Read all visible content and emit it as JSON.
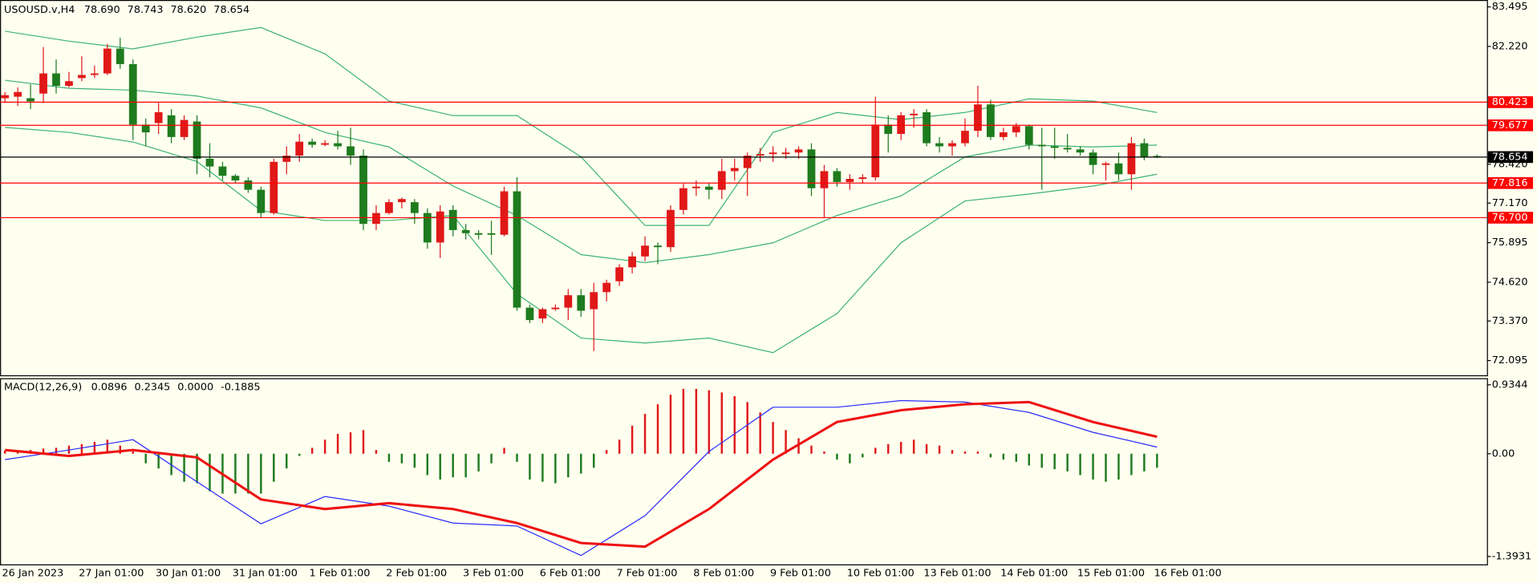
{
  "chart_data": [
    {
      "type": "candlestick",
      "title": "USOUSD.v,H4",
      "header_values": [
        "78.690",
        "78.743",
        "78.620",
        "78.654"
      ],
      "open": [
        80.55,
        80.6,
        80.55,
        80.7,
        81.35,
        80.95,
        81.2,
        81.3,
        81.35,
        82.15,
        81.65,
        79.7,
        79.75,
        80.0,
        79.3,
        79.8,
        78.6,
        78.35,
        78.05,
        77.9,
        77.6,
        76.85,
        78.5,
        78.7,
        79.15,
        79.05,
        79.1,
        79.0,
        78.7,
        76.5,
        76.85,
        77.2,
        77.2,
        76.85,
        75.9,
        76.95,
        76.3,
        76.2,
        76.2,
        76.15,
        77.55,
        73.8,
        73.45,
        73.75,
        73.8,
        74.2,
        73.75,
        74.3,
        74.65,
        75.1,
        75.45,
        75.8,
        75.75,
        76.95,
        77.65,
        77.7,
        77.6,
        78.2,
        78.3,
        78.7,
        78.75,
        78.75,
        78.8,
        78.9,
        77.65,
        78.2,
        77.85,
        77.95,
        78.0,
        79.7,
        79.4,
        80.0,
        80.1,
        79.1,
        79.0,
        79.1,
        79.5,
        80.35,
        79.3,
        79.45,
        79.65,
        79.05,
        79.0,
        78.95,
        78.9,
        78.8,
        78.4,
        78.45,
        78.1,
        79.1,
        78.69
      ],
      "high": [
        80.75,
        80.9,
        81.0,
        82.2,
        81.8,
        81.4,
        81.9,
        81.6,
        82.3,
        82.5,
        81.8,
        79.9,
        80.4,
        80.2,
        80.0,
        80.0,
        79.1,
        78.5,
        78.1,
        78.0,
        77.7,
        78.6,
        79.0,
        79.4,
        79.25,
        79.2,
        79.5,
        79.6,
        78.9,
        77.1,
        77.3,
        77.35,
        77.3,
        77.0,
        77.1,
        77.1,
        76.5,
        76.3,
        76.6,
        77.7,
        78.0,
        73.9,
        73.8,
        73.9,
        74.4,
        74.4,
        74.6,
        74.7,
        75.2,
        75.6,
        76.1,
        75.9,
        77.1,
        77.8,
        77.9,
        77.8,
        78.6,
        78.6,
        78.8,
        78.95,
        79.0,
        78.95,
        79.0,
        79.1,
        78.4,
        78.3,
        78.1,
        78.1,
        80.6,
        80.0,
        80.1,
        80.2,
        80.2,
        79.3,
        79.2,
        79.9,
        80.95,
        80.5,
        79.6,
        79.75,
        79.7,
        79.6,
        79.6,
        79.4,
        79.0,
        78.9,
        78.5,
        78.8,
        79.3,
        79.25,
        78.743
      ],
      "low": [
        80.4,
        80.3,
        80.2,
        80.4,
        80.7,
        80.9,
        81.1,
        81.2,
        81.3,
        81.5,
        79.2,
        79.0,
        79.4,
        79.1,
        79.2,
        78.1,
        78.0,
        77.9,
        77.8,
        77.5,
        76.7,
        76.8,
        78.1,
        78.5,
        78.95,
        79.0,
        78.9,
        78.4,
        76.3,
        76.3,
        76.8,
        77.0,
        76.5,
        75.7,
        75.4,
        76.1,
        76.0,
        76.0,
        75.5,
        76.1,
        73.7,
        73.3,
        73.3,
        73.7,
        73.4,
        73.5,
        72.4,
        74.0,
        74.5,
        74.9,
        75.3,
        75.2,
        75.6,
        76.8,
        77.4,
        77.3,
        77.3,
        77.9,
        77.4,
        78.5,
        78.5,
        78.6,
        78.6,
        77.4,
        76.7,
        77.7,
        77.6,
        77.8,
        77.9,
        78.8,
        79.2,
        79.6,
        79.0,
        78.8,
        78.7,
        79.0,
        79.3,
        79.2,
        79.2,
        79.3,
        78.9,
        77.6,
        78.6,
        78.8,
        78.7,
        78.1,
        77.9,
        77.9,
        77.6,
        78.55,
        78.62
      ],
      "close": [
        80.65,
        80.75,
        80.45,
        81.35,
        80.95,
        81.1,
        81.3,
        81.35,
        82.15,
        81.65,
        79.7,
        79.45,
        80.1,
        79.3,
        79.85,
        78.6,
        78.35,
        78.05,
        77.9,
        77.6,
        76.85,
        78.5,
        78.7,
        79.15,
        79.05,
        79.1,
        79.0,
        78.7,
        76.5,
        76.85,
        77.2,
        77.3,
        76.85,
        75.9,
        76.9,
        76.3,
        76.2,
        76.15,
        76.15,
        77.55,
        73.8,
        73.4,
        73.75,
        73.8,
        74.2,
        73.7,
        74.3,
        74.6,
        75.1,
        75.45,
        75.8,
        75.75,
        76.95,
        77.65,
        77.7,
        77.6,
        78.2,
        78.3,
        78.7,
        78.75,
        78.8,
        78.8,
        78.9,
        77.65,
        78.2,
        77.85,
        77.95,
        78.0,
        79.7,
        79.4,
        80.0,
        80.05,
        79.1,
        79.0,
        79.1,
        79.5,
        80.35,
        79.3,
        79.45,
        79.65,
        79.05,
        79.0,
        78.95,
        78.9,
        78.8,
        78.4,
        78.45,
        78.1,
        79.1,
        78.65,
        78.654
      ],
      "up_color": "#e01818",
      "down_color": "#1e7b1e",
      "bands": {
        "color": "#3cb371",
        "x": [
          0,
          5,
          10,
          15,
          20,
          25,
          30,
          35,
          40,
          45,
          50,
          55,
          60,
          65,
          70,
          75,
          80,
          85,
          90
        ],
        "upper": [
          82.71,
          82.39,
          82.14,
          82.52,
          82.83,
          81.98,
          80.46,
          79.99,
          79.99,
          78.66,
          76.45,
          76.45,
          79.45,
          80.09,
          79.86,
          80.09,
          80.53,
          80.46,
          80.09
        ],
        "middle": [
          81.13,
          80.87,
          80.81,
          80.62,
          80.24,
          79.45,
          78.98,
          77.72,
          76.77,
          75.51,
          75.25,
          75.51,
          75.89,
          76.77,
          77.4,
          78.66,
          79.04,
          78.98,
          79.04
        ],
        "lower": [
          79.61,
          79.45,
          79.14,
          78.51,
          76.93,
          76.61,
          76.61,
          76.77,
          74.24,
          72.82,
          72.66,
          72.82,
          72.35,
          73.61,
          75.89,
          77.24,
          77.46,
          77.72,
          78.1
        ]
      },
      "levels": [
        {
          "value": 80.423,
          "color": "#ff0000"
        },
        {
          "value": 79.677,
          "color": "#ff0000"
        },
        {
          "value": 77.816,
          "color": "#ff0000"
        },
        {
          "value": 76.7,
          "label": "76.700",
          "color": "#ff0000"
        }
      ],
      "price_line": {
        "value": 78.654,
        "color": "#000000"
      },
      "ylim": [
        71.62,
        83.685
      ],
      "yticks": [
        83.495,
        {
          "value": 82.22,
          "label": "82.220"
        },
        {
          "value": 78.42,
          "label": "78.420"
        },
        {
          "value": 77.17,
          "label": "77.170"
        },
        75.895,
        {
          "value": 74.62,
          "label": "74.620"
        },
        {
          "value": 73.37,
          "label": "73.370"
        },
        72.095
      ],
      "x_labels": [
        "26 Jan 2023",
        "27 Jan 01:00",
        "30 Jan 01:00",
        "31 Jan 01:00",
        "1 Feb 01:00",
        "2 Feb 01:00",
        "3 Feb 01:00",
        "6 Feb 01:00",
        "7 Feb 01:00",
        "8 Feb 01:00",
        "9 Feb 01:00",
        "10 Feb 01:00",
        "13 Feb 01:00",
        "14 Feb 01:00",
        "15 Feb 01:00",
        "16 Feb 01:00"
      ]
    },
    {
      "type": "macd",
      "title": "MACD(12,26,9)",
      "header_values": [
        "0.0896",
        "0.2345",
        "0.0000",
        "-0.1885"
      ],
      "histogram": [
        0.04,
        0.04,
        0.05,
        0.07,
        0.08,
        0.11,
        0.13,
        0.16,
        0.19,
        0.11,
        0.03,
        -0.13,
        -0.2,
        -0.29,
        -0.38,
        -0.4,
        -0.51,
        -0.54,
        -0.54,
        -0.54,
        -0.54,
        -0.38,
        -0.2,
        -0.03,
        0.08,
        0.19,
        0.27,
        0.29,
        0.32,
        0.05,
        -0.11,
        -0.13,
        -0.19,
        -0.29,
        -0.35,
        -0.32,
        -0.32,
        -0.24,
        -0.13,
        0.08,
        -0.11,
        -0.35,
        -0.38,
        -0.4,
        -0.32,
        -0.27,
        -0.19,
        0.05,
        0.19,
        0.38,
        0.54,
        0.67,
        0.8,
        0.88,
        0.88,
        0.86,
        0.83,
        0.78,
        0.7,
        0.56,
        0.43,
        0.32,
        0.21,
        0.11,
        0.03,
        -0.08,
        -0.13,
        -0.05,
        0.08,
        0.13,
        0.16,
        0.19,
        0.13,
        0.11,
        0.05,
        0.03,
        0.03,
        -0.05,
        -0.08,
        -0.11,
        -0.16,
        -0.19,
        -0.21,
        -0.24,
        -0.29,
        -0.35,
        -0.38,
        -0.35,
        -0.29,
        -0.24,
        -0.19
      ],
      "positive_color": "#e01818",
      "negative_color": "#1e7b1e",
      "x": [
        0,
        5,
        10,
        15,
        20,
        25,
        30,
        35,
        40,
        45,
        50,
        55,
        60,
        65,
        70,
        75,
        80,
        85,
        90
      ],
      "series": [
        {
          "color": "#2b2bff",
          "width": 1,
          "values": [
            -0.08,
            0.05,
            0.19,
            -0.38,
            -0.95,
            -0.58,
            -0.71,
            -0.94,
            -0.98,
            -1.38,
            -0.84,
            0.03,
            0.63,
            0.63,
            0.72,
            0.7,
            0.56,
            0.29,
            0.09
          ]
        },
        {
          "color": "#ee1111",
          "width": 2.5,
          "values": [
            0.05,
            -0.03,
            0.05,
            -0.05,
            -0.62,
            -0.75,
            -0.67,
            -0.75,
            -0.94,
            -1.21,
            -1.26,
            -0.75,
            -0.08,
            0.43,
            0.59,
            0.67,
            0.7,
            0.43,
            0.23
          ]
        }
      ],
      "ylim": [
        -1.5,
        1.01
      ],
      "yticks": [
        0.9344,
        {
          "value": 0,
          "label": "0.00"
        },
        -1.3931
      ]
    }
  ]
}
